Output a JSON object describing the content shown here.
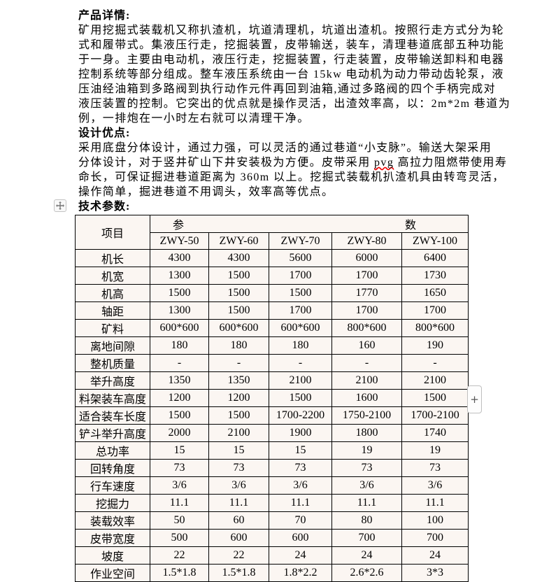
{
  "sections": {
    "product": {
      "heading": "产品详情:",
      "body": "矿用挖掘式装载机又称扒渣机，坑道清理机，坑道出渣机。按照行走方式分为轮\n式和履带式。集液压行走，挖掘装置，皮带输送，装车，清理巷道底部五种功能\n于一身。主要由电动机，液压行走，挖掘装置，行走装置，皮带输送卸料和电器\n控制系统等部分组成。整车液压系统由一台 15kw 电动机为动力带动齿轮泵，液\n压油经油箱到多路阀到执行动作元件再回到油箱,通过多路阀的四个手柄完成对\n液压装置的控制。它突出的优点就是操作灵活，出渣效率高，以：2m*2m 巷道为\n例，一排炮在一小时左右就可以清理干净。"
    },
    "design": {
      "heading": "设计优点:",
      "body_before": "采用底盘分体设计，通过力强，可以灵活的通过巷道“小支脉”。输送大架采用\n分体设计，对于竖井矿山下井安装极为方便。皮带采用 ",
      "misspelled_word": "pvg",
      "body_after": " 高拉力阻燃带使用寿\n命长，可保证掘进巷道距离为 360m 以上。挖掘式装载机扒渣机具由转弯灵活，\n操作简单，掘进巷道不用调头，效率高等优点。"
    },
    "specs": {
      "heading": "技术参数:"
    }
  },
  "table": {
    "corner_header": "项目",
    "group_header_left": "参",
    "group_header_right": "数",
    "model_headers": [
      "ZWY-50",
      "ZWY-60",
      "ZWY-70",
      "ZWY-80",
      "ZWY-100"
    ],
    "rows": [
      {
        "label": "机长",
        "values": [
          "4300",
          "4300",
          "5600",
          "6000",
          "6400"
        ]
      },
      {
        "label": "机宽",
        "values": [
          "1300",
          "1500",
          "1700",
          "1700",
          "1730"
        ]
      },
      {
        "label": "机高",
        "values": [
          "1500",
          "1500",
          "1500",
          "1770",
          "1650"
        ]
      },
      {
        "label": "轴距",
        "values": [
          "1300",
          "1500",
          "1700",
          "1700",
          "1700"
        ]
      },
      {
        "label": "矿料",
        "values": [
          "600*600",
          "600*600",
          "600*600",
          "800*600",
          "800*600"
        ]
      },
      {
        "label": "离地间隙",
        "values": [
          "180",
          "180",
          "180",
          "160",
          "190"
        ]
      },
      {
        "label": "整机质量",
        "values": [
          "-",
          "-",
          "-",
          "-",
          "-"
        ]
      },
      {
        "label": "举升高度",
        "values": [
          "1350",
          "1350",
          "2100",
          "2100",
          "2100"
        ]
      },
      {
        "label": "料架装车高度",
        "values": [
          "1200",
          "1200",
          "1500",
          "1600",
          "1500"
        ]
      },
      {
        "label": "适合装车长度",
        "values": [
          "1500",
          "1500",
          "1700-2200",
          "1750-2100",
          "1700-2100"
        ]
      },
      {
        "label": "铲斗举升高度",
        "values": [
          "2000",
          "2100",
          "1900",
          "1800",
          "1740"
        ]
      },
      {
        "label": "总功率",
        "values": [
          "15",
          "15",
          "15",
          "19",
          "19"
        ]
      },
      {
        "label": "回转角度",
        "values": [
          "73",
          "73",
          "73",
          "73",
          "73"
        ]
      },
      {
        "label": "行车速度",
        "values": [
          "3/6",
          "3/6",
          "3/6",
          "3/6",
          "3/6"
        ]
      },
      {
        "label": "挖掘力",
        "values": [
          "11.1",
          "11.1",
          "11.1",
          "11.1",
          "11.1"
        ]
      },
      {
        "label": "装载效率",
        "values": [
          "50",
          "60",
          "70",
          "80",
          "100"
        ]
      },
      {
        "label": "皮带宽度",
        "values": [
          "500",
          "600",
          "600",
          "700",
          "700"
        ]
      },
      {
        "label": "坡度",
        "values": [
          "22",
          "22",
          "24",
          "24",
          "24"
        ]
      },
      {
        "label": "作业空间",
        "values": [
          "1.5*1.8",
          "1.5*1.8",
          "1.8*2.2",
          "2.6*2.6",
          "3*3"
        ]
      }
    ]
  },
  "controls": {
    "add_button_label": "+"
  },
  "colors": {
    "cell_background": "#fbf6f2",
    "table_border": "#000000",
    "squiggle": "#ee0000",
    "handle_border": "#c3c3c3"
  }
}
